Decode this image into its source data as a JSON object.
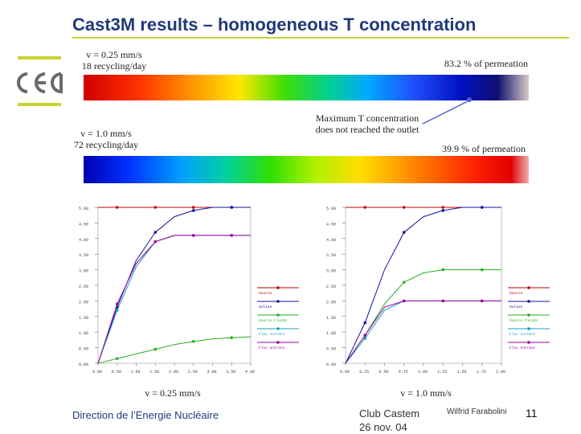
{
  "slide": {
    "title": "Cast3M results – homogeneous T concentration",
    "footer_left": "Direction de l’Energie Nucléaire",
    "footer_center_line1": "Club Castem",
    "footer_center_line2": "26 nov. 04",
    "author": "Wilfrid Farabolini",
    "page_number": "11",
    "logo_text": "cea"
  },
  "annotations": {
    "top_left_line1": "v = 0.25 mm/s",
    "top_left_line2": "18 recycling/day",
    "top_right": "83.2 % of permeation",
    "middle_left_line1": "v = 1.0 mm/s",
    "middle_left_line2": "72 recycling/day",
    "middle_center_line1": "Maximum T concentration",
    "middle_center_line2": "does not reached the outlet",
    "middle_right": "39.9 % of permeation",
    "chart_left_caption": "v = 0.25 mm/s",
    "chart_right_caption": "v = 1.0 mm/s"
  },
  "chart_data": [
    {
      "type": "line",
      "title": "",
      "xlabel": "",
      "ylabel": "",
      "xlim": [
        0,
        4.0
      ],
      "ylim": [
        0,
        5.0
      ],
      "x_ticks": [
        "0.00",
        "0.50",
        "1.00",
        "1.50",
        "2.00",
        "2.50",
        "3.00",
        "3.50",
        "4.00"
      ],
      "y_ticks": [
        "0.00",
        "0.50",
        "1.00",
        "1.50",
        "2.00",
        "2.50",
        "3.00",
        "3.50",
        "4.00",
        "4.50",
        "5.00"
      ],
      "series": [
        {
          "name": "Source",
          "color": "#c00000",
          "x": [
            0,
            0.5,
            1,
            1.5,
            2,
            2.5,
            3,
            3.5,
            4
          ],
          "values": [
            5.0,
            5.0,
            5.0,
            5.0,
            5.0,
            5.0,
            5.0,
            5.0,
            5.0
          ]
        },
        {
          "name": "Solise",
          "color": "#1010a0",
          "x": [
            0,
            0.5,
            1,
            1.5,
            2,
            2.5,
            3,
            3.5,
            4
          ],
          "values": [
            0,
            1.8,
            3.3,
            4.2,
            4.7,
            4.9,
            5.0,
            5.0,
            5.0
          ]
        },
        {
          "name": "Source Fluide",
          "color": "#20b020",
          "x": [
            0,
            0.5,
            1,
            1.5,
            2,
            2.5,
            3,
            3.5,
            4
          ],
          "values": [
            0,
            0.15,
            0.3,
            0.45,
            0.6,
            0.7,
            0.78,
            0.82,
            0.85
          ]
        },
        {
          "name": "Flux sortant",
          "color": "#10a0c0",
          "x": [
            0,
            0.5,
            1,
            1.5,
            2,
            2.5,
            3,
            3.5,
            4
          ],
          "values": [
            0,
            1.7,
            3.1,
            3.9,
            4.1,
            4.1,
            4.1,
            4.1,
            4.1
          ]
        },
        {
          "name": "Flux entrant",
          "color": "#a000a0",
          "x": [
            0,
            0.5,
            1,
            1.5,
            2,
            2.5,
            3,
            3.5,
            4
          ],
          "values": [
            0,
            1.9,
            3.2,
            3.9,
            4.1,
            4.1,
            4.1,
            4.1,
            4.1
          ]
        }
      ]
    },
    {
      "type": "line",
      "title": "",
      "xlabel": "",
      "ylabel": "",
      "xlim": [
        0,
        2.0
      ],
      "ylim": [
        0,
        5.0
      ],
      "x_ticks": [
        "0.00",
        "0.25",
        "0.50",
        "0.75",
        "1.00",
        "1.25",
        "1.50",
        "1.75",
        "2.00"
      ],
      "y_ticks": [
        "0.00",
        "0.50",
        "1.00",
        "1.50",
        "2.00",
        "2.50",
        "3.00",
        "3.50",
        "4.00",
        "4.50",
        "5.00"
      ],
      "series": [
        {
          "name": "Source",
          "color": "#c00000",
          "x": [
            0,
            0.25,
            0.5,
            0.75,
            1,
            1.25,
            1.5,
            1.75,
            2
          ],
          "values": [
            5.0,
            5.0,
            5.0,
            5.0,
            5.0,
            5.0,
            5.0,
            5.0,
            5.0
          ]
        },
        {
          "name": "Solise",
          "color": "#1010a0",
          "x": [
            0,
            0.25,
            0.5,
            0.75,
            1,
            1.25,
            1.5,
            1.75,
            2
          ],
          "values": [
            0,
            1.3,
            3.0,
            4.2,
            4.7,
            4.9,
            5.0,
            5.0,
            5.0
          ]
        },
        {
          "name": "Source Fluide",
          "color": "#20b020",
          "x": [
            0,
            0.25,
            0.5,
            0.75,
            1,
            1.25,
            1.5,
            1.75,
            2
          ],
          "values": [
            0,
            0.9,
            1.9,
            2.6,
            2.9,
            3.0,
            3.0,
            3.0,
            3.0
          ]
        },
        {
          "name": "Flux sortant",
          "color": "#10a0c0",
          "x": [
            0,
            0.25,
            0.5,
            0.75,
            1,
            1.25,
            1.5,
            1.75,
            2
          ],
          "values": [
            0,
            0.8,
            1.7,
            2.0,
            2.0,
            2.0,
            2.0,
            2.0,
            2.0
          ]
        },
        {
          "name": "Flux entrant",
          "color": "#a000a0",
          "x": [
            0,
            0.25,
            0.5,
            0.75,
            1,
            1.25,
            1.5,
            1.75,
            2
          ],
          "values": [
            0,
            0.9,
            1.8,
            2.0,
            2.0,
            2.0,
            2.0,
            2.0,
            2.0
          ]
        }
      ]
    }
  ]
}
